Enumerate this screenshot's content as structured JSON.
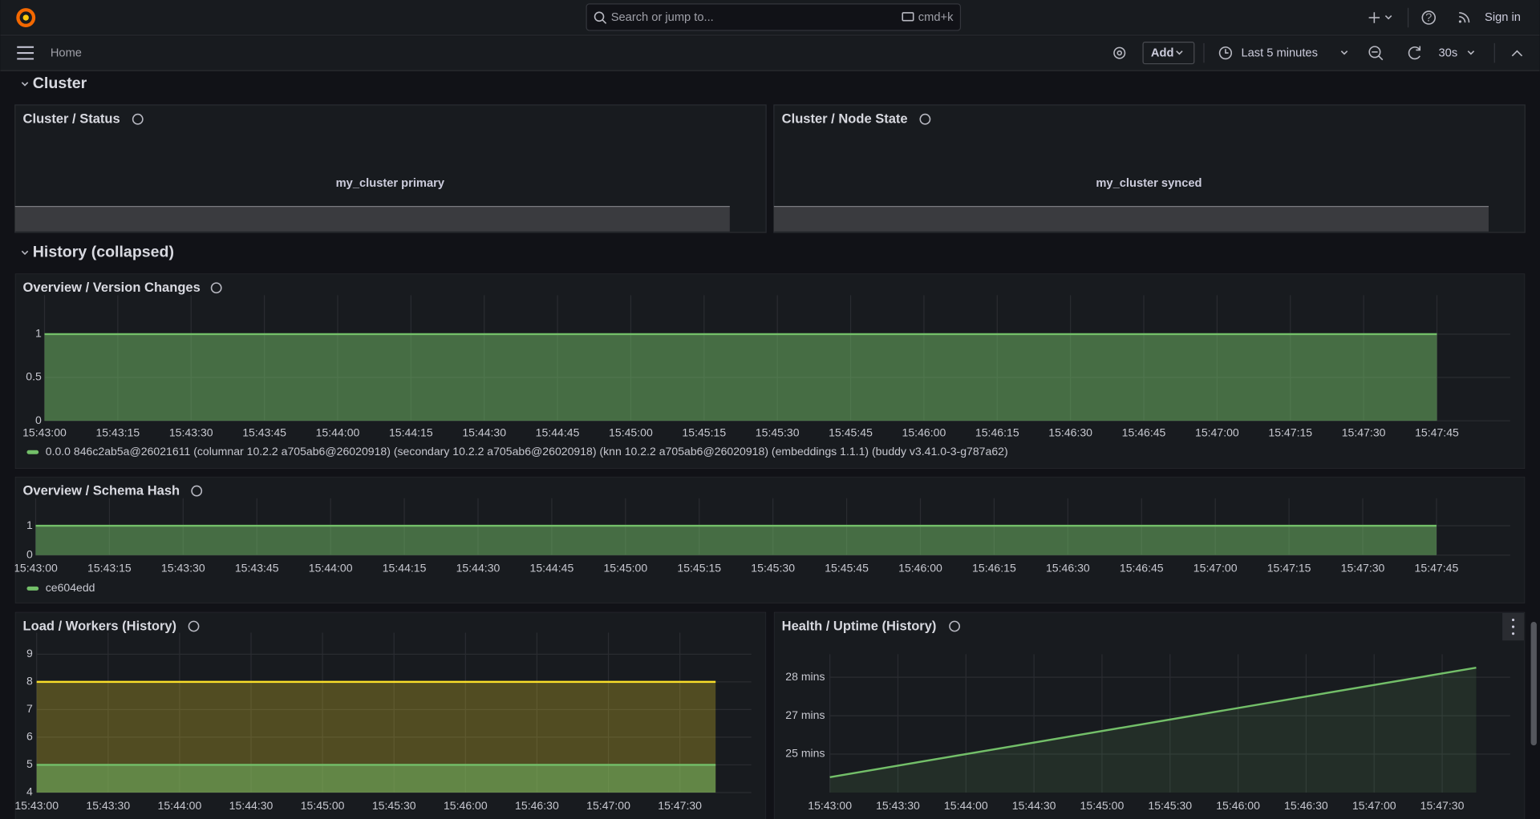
{
  "top_bar": {
    "search_placeholder": "Search or jump to...",
    "shortcut": "cmd+k",
    "sign_in": "Sign in"
  },
  "toolbar": {
    "breadcrumb": "Home",
    "add_button": "Add",
    "time_range": "Last 5 minutes",
    "refresh_interval": "30s"
  },
  "rows": [
    {
      "title": "Cluster"
    },
    {
      "title": "History (collapsed)"
    }
  ],
  "stat_panels": [
    {
      "title": "Cluster / Status",
      "value": "my_cluster primary"
    },
    {
      "title": "Cluster / Node State",
      "value": "my_cluster synced"
    }
  ],
  "chart_data": [
    {
      "type": "area",
      "title": "Overview / Version Changes",
      "x": [
        "15:43:00",
        "15:47:45"
      ],
      "xlim": [
        "15:43:00",
        "15:48:00"
      ],
      "xticks": [
        "15:43:00",
        "15:43:15",
        "15:43:30",
        "15:43:45",
        "15:44:00",
        "15:44:15",
        "15:44:30",
        "15:44:45",
        "15:45:00",
        "15:45:15",
        "15:45:30",
        "15:45:45",
        "15:46:00",
        "15:46:15",
        "15:46:30",
        "15:46:45",
        "15:47:00",
        "15:47:15",
        "15:47:30",
        "15:47:45"
      ],
      "ylim": [
        0,
        1.2
      ],
      "yticks": [
        0,
        0.5,
        1
      ],
      "grid": true,
      "series": [
        {
          "name": "0.0.0 846c2ab5a@26021611 (columnar 10.2.2 a705ab6@26020918) (secondary 10.2.2 a705ab6@26020918) (knn 10.2.2 a705ab6@26020918) (embeddings 1.1.1) (buddy v3.41.0-3-g787a62)",
          "color": "#73bf69",
          "values": [
            1,
            1
          ]
        }
      ]
    },
    {
      "type": "area",
      "title": "Overview / Schema Hash",
      "x": [
        "15:43:00",
        "15:47:45"
      ],
      "xlim": [
        "15:43:00",
        "15:48:00"
      ],
      "xticks": [
        "15:43:00",
        "15:43:15",
        "15:43:30",
        "15:43:45",
        "15:44:00",
        "15:44:15",
        "15:44:30",
        "15:44:45",
        "15:45:00",
        "15:45:15",
        "15:45:30",
        "15:45:45",
        "15:46:00",
        "15:46:15",
        "15:46:30",
        "15:46:45",
        "15:47:00",
        "15:47:15",
        "15:47:30",
        "15:47:45"
      ],
      "ylim": [
        0,
        1.2
      ],
      "yticks": [
        0,
        1
      ],
      "grid": true,
      "series": [
        {
          "name": "ce604edd",
          "color": "#73bf69",
          "values": [
            1,
            1
          ]
        }
      ]
    },
    {
      "type": "area",
      "title": "Load / Workers (History)",
      "x": [
        "15:43:00",
        "15:47:45"
      ],
      "xlim": [
        "15:43:00",
        "15:48:00"
      ],
      "xticks": [
        "15:43:00",
        "15:43:30",
        "15:44:00",
        "15:44:30",
        "15:45:00",
        "15:45:30",
        "15:46:00",
        "15:46:30",
        "15:47:00",
        "15:47:30"
      ],
      "ylim": [
        4,
        9
      ],
      "yticks": [
        4,
        5,
        6,
        7,
        8,
        9
      ],
      "grid": true,
      "series": [
        {
          "color": "#fade2a",
          "values": [
            8,
            8
          ]
        },
        {
          "color": "#73bf69",
          "values": [
            5,
            5
          ]
        }
      ]
    },
    {
      "type": "area",
      "title": "Health / Uptime (History)",
      "x": [
        "15:43:00",
        "15:47:45"
      ],
      "xlim": [
        "15:43:00",
        "15:48:00"
      ],
      "xticks": [
        "15:43:00",
        "15:43:30",
        "15:44:00",
        "15:44:30",
        "15:45:00",
        "15:45:30",
        "15:46:00",
        "15:46:30",
        "15:47:00",
        "15:47:30"
      ],
      "ylim": [
        1400,
        1760
      ],
      "yticks": [
        {
          "value": 1500,
          "label": "25 mins"
        },
        {
          "value": 1600,
          "label": "27 mins"
        },
        {
          "value": 1700,
          "label": "28 mins"
        }
      ],
      "grid": true,
      "series": [
        {
          "color": "#73bf69",
          "values": [
            1440,
            1725
          ]
        }
      ]
    }
  ]
}
